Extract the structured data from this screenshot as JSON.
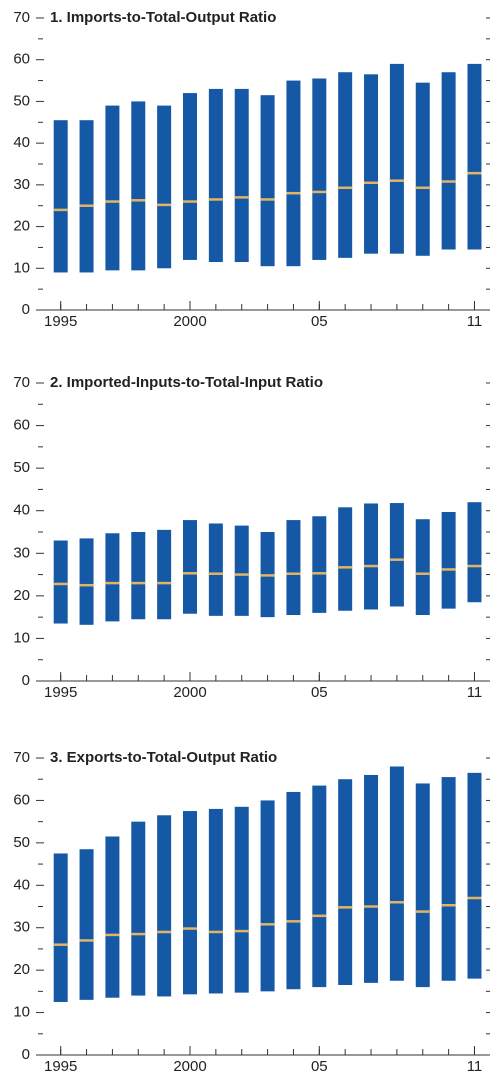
{
  "chart_data": [
    {
      "type": "range-bar",
      "title": "1. Imports-to-Total-Output Ratio",
      "x": [
        1995,
        1996,
        1997,
        1998,
        1999,
        2000,
        2001,
        2002,
        2003,
        2004,
        2005,
        2006,
        2007,
        2008,
        2009,
        2010,
        2011
      ],
      "low": [
        9,
        9,
        9.5,
        9.5,
        10,
        12,
        11.5,
        11.5,
        10.5,
        10.5,
        12,
        12.5,
        13.5,
        13.5,
        13,
        14.5,
        14.5
      ],
      "high": [
        45.5,
        45.5,
        49,
        50,
        49,
        52,
        53,
        53,
        51.5,
        55,
        55.5,
        57,
        56.5,
        59,
        54.5,
        57,
        59
      ],
      "median": [
        24,
        25,
        26,
        26.3,
        25.2,
        26,
        26.5,
        27,
        26.5,
        28,
        28.3,
        29.3,
        30.5,
        31,
        29.3,
        30.8,
        32.8
      ],
      "bar_color": "#1559a6",
      "median_color": "#e3b463",
      "xlim": [
        1994.2,
        2011.6
      ],
      "ylim": [
        0,
        70
      ],
      "xticks": [
        1995,
        2000,
        {
          "value": 2005,
          "label": "05"
        },
        {
          "value": 2011,
          "label": "11"
        }
      ],
      "yticks": [
        0,
        10,
        20,
        30,
        40,
        50,
        60,
        70
      ],
      "yminorticks": [
        5,
        15,
        25,
        35,
        45,
        55,
        65
      ],
      "grid": false
    },
    {
      "type": "range-bar",
      "title": "2. Imported-Inputs-to-Total-Input Ratio",
      "x": [
        1995,
        1996,
        1997,
        1998,
        1999,
        2000,
        2001,
        2002,
        2003,
        2004,
        2005,
        2006,
        2007,
        2008,
        2009,
        2010,
        2011
      ],
      "low": [
        13.5,
        13.2,
        14,
        14.5,
        14.5,
        15.8,
        15.3,
        15.3,
        15,
        15.5,
        16,
        16.5,
        16.8,
        17.5,
        15.5,
        17,
        18.5
      ],
      "high": [
        33,
        33.5,
        34.7,
        35,
        35.5,
        37.8,
        37,
        36.5,
        35,
        37.8,
        38.7,
        40.8,
        41.7,
        41.8,
        38,
        39.7,
        42
      ],
      "median": [
        22.8,
        22.5,
        23,
        23,
        23,
        25.3,
        25.2,
        25,
        24.8,
        25.2,
        25.3,
        26.7,
        27,
        28.5,
        25.2,
        26.2,
        27
      ],
      "bar_color": "#1559a6",
      "median_color": "#e3b463",
      "xlim": [
        1994.2,
        2011.6
      ],
      "ylim": [
        0,
        70
      ],
      "xticks": [
        1995,
        2000,
        {
          "value": 2005,
          "label": "05"
        },
        {
          "value": 2011,
          "label": "11"
        }
      ],
      "yticks": [
        0,
        10,
        20,
        30,
        40,
        50,
        60,
        70
      ],
      "yminorticks": [
        5,
        15,
        25,
        35,
        45,
        55,
        65
      ],
      "grid": false
    },
    {
      "type": "range-bar",
      "title": "3. Exports-to-Total-Output Ratio",
      "x": [
        1995,
        1996,
        1997,
        1998,
        1999,
        2000,
        2001,
        2002,
        2003,
        2004,
        2005,
        2006,
        2007,
        2008,
        2009,
        2010,
        2011
      ],
      "low": [
        12.5,
        13,
        13.5,
        14,
        13.8,
        14.3,
        14.5,
        14.7,
        15,
        15.5,
        16,
        16.5,
        17,
        17.5,
        16,
        17.5,
        18
      ],
      "high": [
        47.5,
        48.5,
        51.5,
        55,
        56.5,
        57.5,
        58,
        58.5,
        60,
        62,
        63.5,
        65,
        66,
        68,
        64,
        65.5,
        66.5
      ],
      "median": [
        26,
        27,
        28.3,
        28.5,
        29,
        29.8,
        29,
        29.2,
        30.8,
        31.5,
        32.8,
        34.8,
        35,
        36,
        33.8,
        35.3,
        37
      ],
      "bar_color": "#1559a6",
      "median_color": "#e3b463",
      "xlim": [
        1994.2,
        2011.6
      ],
      "ylim": [
        0,
        70
      ],
      "xticks": [
        1995,
        2000,
        {
          "value": 2005,
          "label": "05"
        },
        {
          "value": 2011,
          "label": "11"
        }
      ],
      "yticks": [
        0,
        10,
        20,
        30,
        40,
        50,
        60,
        70
      ],
      "yminorticks": [
        5,
        15,
        25,
        35,
        45,
        55,
        65
      ],
      "grid": false
    }
  ]
}
